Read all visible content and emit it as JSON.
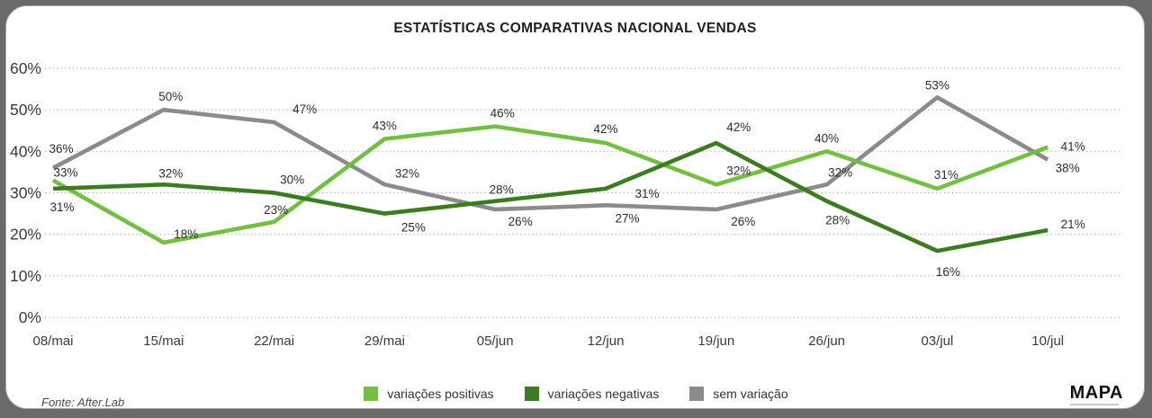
{
  "footer": {
    "source": "Fonte: After.Lab",
    "brand": "MAPA"
  },
  "chart_data": {
    "type": "line",
    "title": "ESTATÍSTICAS COMPARATIVAS NACIONAL VENDAS",
    "categories": [
      "08/mai",
      "15/mai",
      "22/mai",
      "29/mai",
      "05/jun",
      "12/jun",
      "19/jun",
      "26/jun",
      "03/jul",
      "10/jul"
    ],
    "series": [
      {
        "name": "variações positivas",
        "color": "#72bf44",
        "z": 2,
        "values": [
          33,
          18,
          23,
          43,
          46,
          42,
          32,
          40,
          31,
          41
        ],
        "label_offsets": [
          [
            14,
            -4
          ],
          [
            25,
            -5
          ],
          [
            2,
            -9
          ],
          [
            0,
            -10
          ],
          [
            8,
            -10
          ],
          [
            0,
            -11
          ],
          [
            25,
            -11
          ],
          [
            0,
            -10
          ],
          [
            10,
            -11
          ],
          [
            28,
            4
          ]
        ]
      },
      {
        "name": "variações negativas",
        "color": "#3c7b22",
        "z": 3,
        "values": [
          31,
          32,
          30,
          25,
          28,
          31,
          42,
          28,
          16,
          21
        ],
        "label_offsets": [
          [
            10,
            25
          ],
          [
            8,
            -8
          ],
          [
            20,
            -10
          ],
          [
            32,
            20
          ],
          [
            7,
            -8
          ],
          [
            46,
            10
          ],
          [
            25,
            -13
          ],
          [
            12,
            26
          ],
          [
            12,
            28
          ],
          [
            28,
            -2
          ]
        ]
      },
      {
        "name": "sem variação",
        "color": "#8b8b8b",
        "z": 1,
        "values": [
          36,
          50,
          47,
          32,
          26,
          27,
          26,
          32,
          53,
          38
        ],
        "label_offsets": [
          [
            9,
            -17
          ],
          [
            8,
            -10
          ],
          [
            34,
            -10
          ],
          [
            25,
            -8
          ],
          [
            28,
            18
          ],
          [
            24,
            19
          ],
          [
            30,
            18
          ],
          [
            15,
            -9
          ],
          [
            0,
            -9
          ],
          [
            22,
            14
          ]
        ]
      }
    ],
    "y_ticks": [
      0,
      10,
      20,
      30,
      40,
      50,
      60
    ],
    "y_tick_suffix": "%",
    "value_suffix": "%",
    "ylim": [
      0,
      60
    ],
    "grid": "horizontal-dotted",
    "legend_position": "bottom"
  },
  "colors": {
    "grid": "#b5b5b5",
    "axis_text": "#3a3a3a",
    "data_label": "#2d2d2d"
  }
}
